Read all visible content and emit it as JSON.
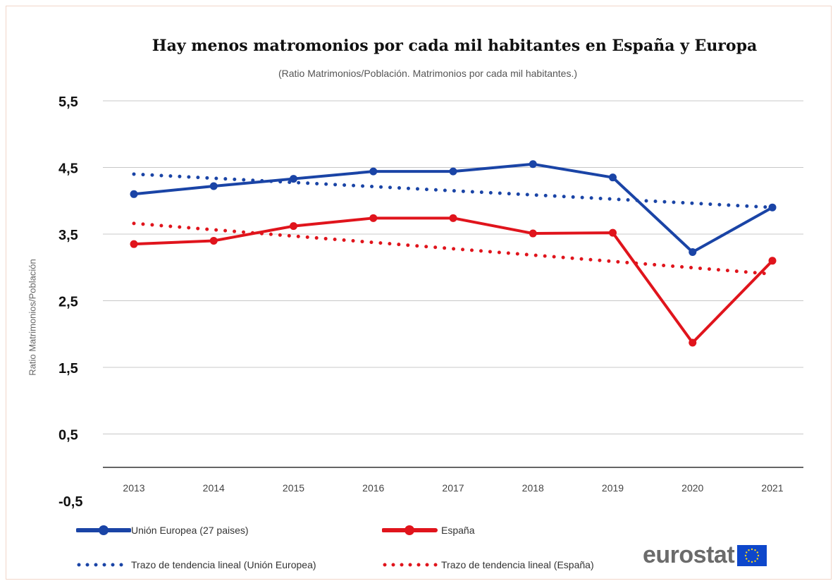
{
  "chart_data": {
    "type": "line",
    "title": "Hay menos matromonios por cada mil habitantes en España y Europa",
    "subtitle": "(Ratio Matrimonios/Población. Matrimonios por cada mil habitantes.)",
    "xlabel": "",
    "ylabel": "Ratio Matrimonios/Población",
    "categories": [
      "2013",
      "2014",
      "2015",
      "2016",
      "2017",
      "2018",
      "2019",
      "2020",
      "2021"
    ],
    "yticks": [
      "5,5",
      "4,5",
      "3,5",
      "2,5",
      "1,5",
      "0,5",
      "-0,5"
    ],
    "ylim": [
      -0.5,
      5.5
    ],
    "grid": true,
    "legend_position": "bottom",
    "series": [
      {
        "name": "Unión Europea (27 paises)",
        "style": "solid",
        "color": "#1a44a6",
        "values": [
          4.1,
          4.22,
          4.33,
          4.44,
          4.44,
          4.55,
          4.35,
          3.23,
          3.9
        ]
      },
      {
        "name": "España",
        "style": "solid",
        "color": "#e0141c",
        "values": [
          3.35,
          3.4,
          3.62,
          3.74,
          3.74,
          3.51,
          3.52,
          1.87,
          3.1
        ]
      },
      {
        "name": "Trazo de tendencia lineal (Unión Europea)",
        "style": "dotted",
        "color": "#1a44a6",
        "values": [
          4.4,
          4.338,
          4.275,
          4.213,
          4.15,
          4.088,
          4.025,
          3.963,
          3.9
        ]
      },
      {
        "name": "Trazo de tendencia lineal (España)",
        "style": "dotted",
        "color": "#e0141c",
        "values": [
          3.66,
          3.565,
          3.47,
          3.375,
          3.28,
          3.185,
          3.09,
          2.995,
          2.9
        ]
      }
    ]
  },
  "logo": {
    "text": "eurostat",
    "flag_color": "#0e47cb",
    "star_color": "#ffd617"
  }
}
